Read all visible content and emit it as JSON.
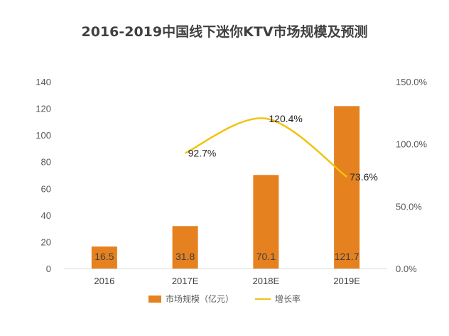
{
  "chart_data": {
    "type": "bar+line",
    "title": "2016-2019中国线下迷你KTV市场规模及预测",
    "categories": [
      "2016",
      "2017E",
      "2018E",
      "2019E"
    ],
    "series": [
      {
        "name": "市场规模（亿元）",
        "type": "bar",
        "axis": "left",
        "values": [
          16.5,
          31.8,
          70.1,
          121.7
        ],
        "labels": [
          "16.5",
          "31.8",
          "70.1",
          "121.7"
        ],
        "color": "#E5811F"
      },
      {
        "name": "增长率",
        "type": "line",
        "axis": "right",
        "values": [
          null,
          92.7,
          120.4,
          73.6
        ],
        "labels": [
          "",
          "92.7%",
          "120.4%",
          "73.6%"
        ],
        "color": "#F2C20E"
      }
    ],
    "y_left": {
      "min": 0,
      "max": 140,
      "ticks": [
        "0",
        "20",
        "40",
        "60",
        "80",
        "100",
        "120",
        "140"
      ]
    },
    "y_right": {
      "min": 0,
      "max": 150,
      "ticks": [
        "0.0%",
        "50.0%",
        "100.0%",
        "150.0%"
      ]
    },
    "legend_position": "bottom",
    "grid": false
  }
}
